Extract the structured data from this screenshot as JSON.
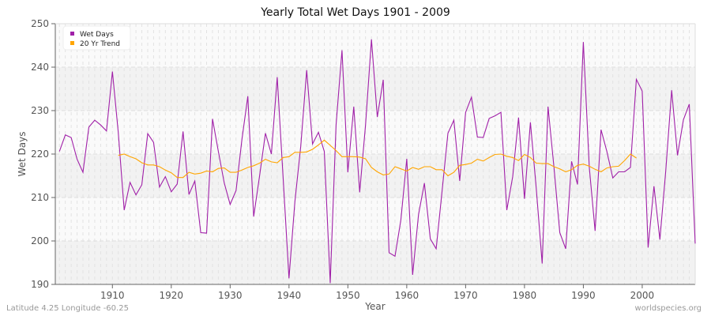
{
  "chart_data": {
    "type": "line",
    "title": "Yearly Total Wet Days 1901 - 2009",
    "xlabel": "Year",
    "ylabel": "Wet Days",
    "xlim": [
      1900.3,
      2009
    ],
    "ylim": [
      190,
      250
    ],
    "yticks": [
      190,
      200,
      210,
      220,
      230,
      240,
      250
    ],
    "xticks": [
      1910,
      1920,
      1930,
      1940,
      1950,
      1960,
      1970,
      1980,
      1990,
      2000
    ],
    "grid": true,
    "legend_position": "top-left",
    "series": [
      {
        "name": "Wet Days",
        "color": "#a020a8",
        "start_year": 1901,
        "values": [
          220.6,
          224.4,
          223.8,
          218.8,
          215.8,
          226.2,
          227.8,
          226.7,
          225.3,
          239.0,
          225.0,
          207.1,
          213.5,
          210.6,
          212.9,
          224.7,
          222.7,
          212.4,
          214.8,
          211.3,
          213.1,
          225.2,
          210.7,
          213.8,
          201.9,
          201.8,
          228.1,
          220.6,
          213.3,
          208.4,
          211.6,
          223.3,
          233.3,
          205.6,
          215.0,
          224.8,
          220.0,
          237.7,
          214.5,
          191.4,
          209.1,
          221.8,
          239.3,
          222.3,
          225.0,
          220.6,
          190.3,
          226.7,
          243.9,
          215.8,
          230.9,
          211.2,
          226.7,
          246.4,
          228.5,
          237.1,
          197.3,
          196.5,
          204.8,
          218.9,
          192.2,
          206.1,
          213.3,
          200.5,
          198.2,
          211.5,
          224.8,
          227.8,
          213.8,
          229.6,
          233.1,
          223.9,
          223.8,
          228.2,
          228.8,
          229.6,
          207.1,
          214.8,
          228.4,
          209.7,
          227.3,
          212.1,
          194.8,
          230.9,
          217.0,
          201.9,
          198.2,
          218.3,
          213.0,
          245.8,
          217.0,
          202.3,
          225.6,
          220.6,
          214.5,
          215.9,
          215.9,
          216.9,
          237.2,
          234.5,
          198.5,
          212.6,
          200.3,
          216.1,
          234.7,
          219.7,
          227.9,
          231.5,
          199.4
        ]
      },
      {
        "name": "20 Yr Trend",
        "color": "#ffa500",
        "start_year": 1911,
        "values": [
          219.7,
          220.0,
          219.4,
          218.9,
          218.0,
          217.5,
          217.5,
          217.1,
          216.3,
          215.7,
          214.6,
          214.6,
          215.8,
          215.4,
          215.6,
          216.1,
          215.9,
          216.7,
          216.8,
          215.8,
          215.8,
          216.3,
          216.9,
          217.3,
          217.9,
          218.8,
          218.2,
          218.0,
          219.2,
          219.4,
          220.4,
          220.4,
          220.5,
          221.1,
          222.1,
          223.2,
          222.0,
          220.8,
          219.4,
          219.4,
          219.4,
          219.3,
          218.9,
          216.9,
          215.9,
          215.2,
          215.4,
          217.1,
          216.6,
          216.1,
          216.9,
          216.5,
          217.1,
          217.1,
          216.4,
          216.4,
          215.0,
          215.8,
          217.4,
          217.6,
          217.9,
          218.8,
          218.4,
          219.2,
          219.9,
          220.0,
          219.5,
          219.2,
          218.5,
          219.9,
          219.2,
          217.9,
          217.8,
          217.8,
          217.1,
          216.6,
          215.9,
          216.4,
          217.4,
          217.7,
          217.2,
          216.5,
          215.9,
          216.8,
          217.1,
          217.2,
          218.5,
          220.0,
          219.1
        ]
      }
    ]
  },
  "footer": {
    "location": "Latitude 4.25 Longitude -60.25",
    "source": "worldspecies.org"
  }
}
